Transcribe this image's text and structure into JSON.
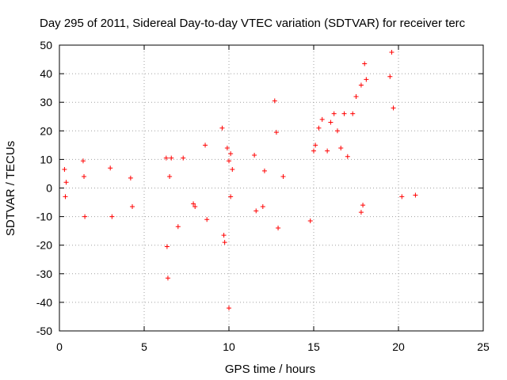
{
  "chart_data": {
    "type": "scatter",
    "title": "Day 295 of 2011, Sidereal Day-to-day VTEC variation (SDTVAR) for receiver terc",
    "xlabel": "GPS time / hours",
    "ylabel": "SDTVAR / TECUs",
    "xlim": [
      0,
      25
    ],
    "ylim": [
      -50,
      50
    ],
    "xticks": [
      0,
      5,
      10,
      15,
      20,
      25
    ],
    "yticks": [
      -50,
      -40,
      -30,
      -20,
      -10,
      0,
      10,
      20,
      30,
      40,
      50
    ],
    "grid": true,
    "marker": "+",
    "series": [
      {
        "name": "SDTVAR",
        "color": "#ff0000",
        "x": [
          0.3,
          0.35,
          0.4,
          1.4,
          1.5,
          1.45,
          3.0,
          3.1,
          4.2,
          4.3,
          6.3,
          6.35,
          6.4,
          6.5,
          6.6,
          7.0,
          7.3,
          7.9,
          8.0,
          8.6,
          8.7,
          9.6,
          9.7,
          9.75,
          9.9,
          10.0,
          10.1,
          10.1,
          10.0,
          10.2,
          11.5,
          11.6,
          12.0,
          12.1,
          12.7,
          12.8,
          12.9,
          13.2,
          14.8,
          15.0,
          15.1,
          15.3,
          15.5,
          15.8,
          16.0,
          16.2,
          16.4,
          16.6,
          16.8,
          17.0,
          17.3,
          17.5,
          17.8,
          18.0,
          18.1,
          17.9,
          17.8,
          19.5,
          19.6,
          19.7,
          20.2,
          21.0
        ],
        "y": [
          6.5,
          -3,
          2,
          9.5,
          -10,
          4,
          7,
          -10,
          3.5,
          -6.5,
          10.5,
          -20.5,
          -31.5,
          4,
          10.5,
          -13.5,
          10.5,
          -5.5,
          -6.5,
          15,
          -11,
          21,
          -16.5,
          -19,
          14,
          -42,
          12,
          -3,
          9.5,
          6.5,
          11.5,
          -8,
          -6.5,
          6,
          30.5,
          19.5,
          -14,
          4,
          -11.5,
          13,
          15,
          21,
          24,
          13,
          23,
          26,
          20,
          14,
          26,
          11,
          26,
          32,
          36,
          43.5,
          38,
          -6,
          -8.5,
          39,
          47.5,
          28,
          -3,
          -2.5
        ]
      }
    ]
  }
}
